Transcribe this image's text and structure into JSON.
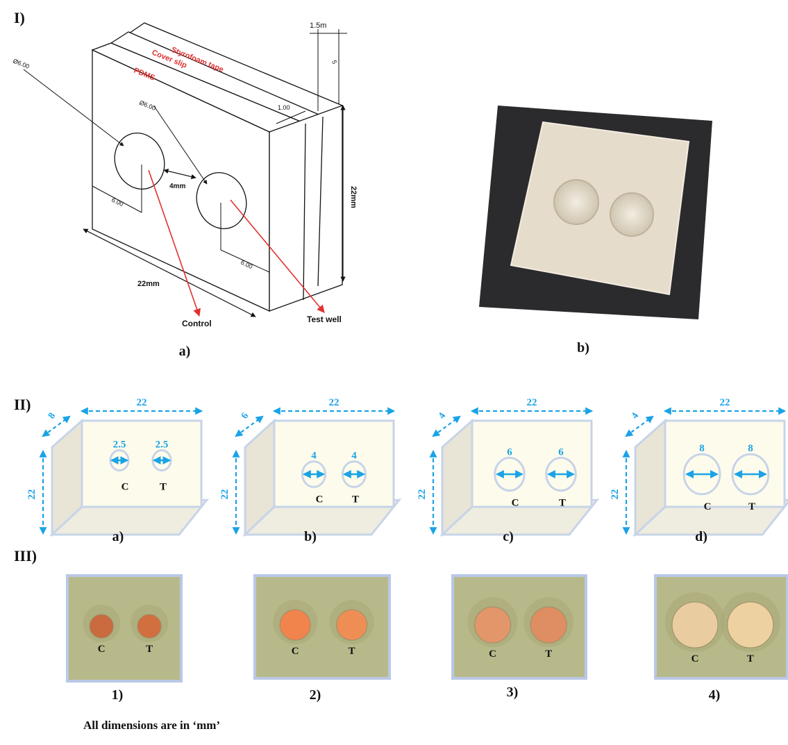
{
  "sections": {
    "one": "I)",
    "two": "II)",
    "three": "III)"
  },
  "part1": {
    "layers": [
      "Styrofoam tape",
      "Cover slip",
      "PDMS"
    ],
    "dims": {
      "thickness": "1.5m",
      "small": "5",
      "slip": "1.00",
      "dia1": "Ø6.00",
      "dia2": "Ø6.00",
      "spacing": "4mm",
      "offset1": "6.00",
      "offset2": "6.00",
      "height": "22mm",
      "width": "22mm"
    },
    "pointers": [
      "Control",
      "Test well"
    ],
    "captions": [
      "a)",
      "b)"
    ]
  },
  "part2": {
    "boxes": [
      {
        "depth": "8",
        "width": "22",
        "height": "22",
        "well": "2.5",
        "caption": "a)",
        "diameter_mm": 2.5
      },
      {
        "depth": "6",
        "width": "22",
        "height": "22",
        "well": "4",
        "caption": "b)",
        "diameter_mm": 4
      },
      {
        "depth": "4",
        "width": "22",
        "height": "22",
        "well": "6",
        "caption": "c)",
        "diameter_mm": 6
      },
      {
        "depth": "4",
        "width": "22",
        "height": "22",
        "well": "8",
        "caption": "d)",
        "diameter_mm": 8
      }
    ],
    "well_labels": [
      "C",
      "T"
    ]
  },
  "part3": {
    "photos": [
      {
        "caption": "1)"
      },
      {
        "caption": "2)"
      },
      {
        "caption": "3)"
      },
      {
        "caption": "4)"
      }
    ],
    "well_labels": [
      "C",
      "T"
    ]
  },
  "footnote": "All dimensions are in ‘mm’",
  "colors": {
    "dim_blue": "#1aa3e6",
    "red_label": "#e0312f",
    "box_face": "#fdfbeb",
    "box_edge": "#c7d4e8",
    "photo_border": "#b9c8e6",
    "photo_bg": "#b8b98a",
    "mat": "#2b2b2e",
    "pdms": "#e6dccb"
  }
}
